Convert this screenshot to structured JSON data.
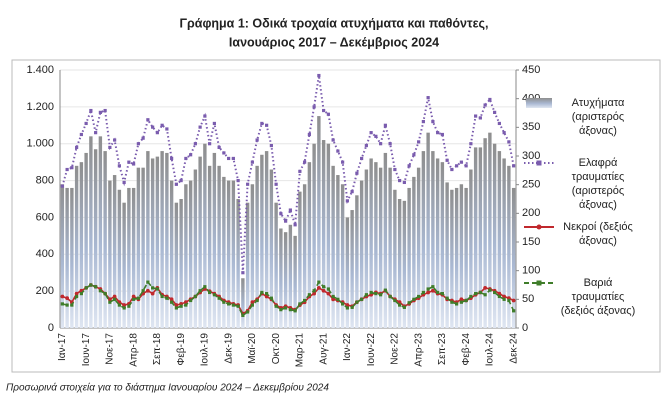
{
  "chart_data": {
    "type": "combo",
    "title": "Γράφημα 1: Οδικά τροχαία ατυχήματα και παθόντες,",
    "subtitle": "Ιανουάριος 2017 – Δεκέμβριος 2024",
    "footnote": "Προσωρινά στοιχεία για το διάστημα Ιανουαρίου 2024 – Δεκεμβρίου 2024",
    "categories": [
      "Ιαν-17",
      null,
      null,
      null,
      null,
      "Ιουν-17",
      null,
      null,
      null,
      null,
      "Νοε-17",
      null,
      null,
      null,
      null,
      "Απρ-18",
      null,
      null,
      null,
      null,
      "Σεπ-18",
      null,
      null,
      null,
      null,
      "Φεβ-19",
      null,
      null,
      null,
      null,
      "Ιουλ-19",
      null,
      null,
      null,
      null,
      "Δεκ-19",
      null,
      null,
      null,
      null,
      "Μαϊ-20",
      null,
      null,
      null,
      null,
      "Οκτ-20",
      null,
      null,
      null,
      null,
      "Μαρ-21",
      null,
      null,
      null,
      null,
      "Αυγ-21",
      null,
      null,
      null,
      null,
      "Ιαν-22",
      null,
      null,
      null,
      null,
      "Ιουν-22",
      null,
      null,
      null,
      null,
      "Νοε-22",
      null,
      null,
      null,
      null,
      "Απρ-23",
      null,
      null,
      null,
      null,
      "Σεπ-23",
      null,
      null,
      null,
      null,
      "Φεβ-24",
      null,
      null,
      null,
      null,
      "Ιουλ-24",
      null,
      null,
      null,
      null,
      "Δεκ-24"
    ],
    "series": [
      {
        "name": "Ατυχήματα (αριστερός άξονας)",
        "type": "bar",
        "axis": "y",
        "color": "#a9b8d2",
        "values": [
          780,
          760,
          760,
          880,
          900,
          950,
          1040,
          970,
          1040,
          960,
          800,
          830,
          750,
          680,
          760,
          760,
          870,
          870,
          960,
          920,
          930,
          960,
          950,
          800,
          680,
          700,
          780,
          800,
          860,
          930,
          1000,
          880,
          950,
          880,
          820,
          800,
          800,
          700,
          270,
          680,
          780,
          880,
          940,
          960,
          860,
          680,
          540,
          520,
          560,
          500,
          740,
          780,
          900,
          1000,
          1150,
          1020,
          1000,
          880,
          830,
          780,
          600,
          640,
          720,
          800,
          860,
          920,
          900,
          870,
          950,
          870,
          750,
          700,
          690,
          760,
          820,
          870,
          960,
          1060,
          960,
          920,
          900,
          790,
          750,
          760,
          780,
          760,
          860,
          980,
          980,
          1030,
          1060,
          1000,
          960,
          920,
          880,
          760
        ]
      },
      {
        "name": "Ελαφρά τραυματίες (αριστερός άξονας)",
        "type": "line",
        "axis": "y",
        "color": "#7a5cae",
        "style": "dotted",
        "marker": "square",
        "values": [
          770,
          860,
          870,
          980,
          1050,
          1110,
          1180,
          1060,
          1170,
          1180,
          980,
          1020,
          880,
          790,
          900,
          890,
          1000,
          1030,
          1130,
          1090,
          1060,
          1100,
          1080,
          920,
          780,
          800,
          920,
          940,
          1000,
          1090,
          1150,
          1000,
          1110,
          980,
          950,
          920,
          920,
          800,
          300,
          780,
          900,
          1020,
          1110,
          1100,
          990,
          780,
          620,
          580,
          640,
          560,
          850,
          900,
          1050,
          1200,
          1370,
          1180,
          1160,
          1020,
          960,
          900,
          690,
          740,
          840,
          920,
          990,
          1060,
          1040,
          1000,
          1100,
          1000,
          860,
          800,
          790,
          880,
          940,
          1010,
          1120,
          1250,
          1120,
          1060,
          1050,
          910,
          860,
          880,
          900,
          880,
          1000,
          1150,
          1140,
          1210,
          1240,
          1170,
          1110,
          1060,
          1010,
          880
        ]
      },
      {
        "name": "Νεκροί (δεξιός άξονας)",
        "type": "line",
        "axis": "y2",
        "color": "#c0282d",
        "style": "solid",
        "marker": "circle",
        "values": [
          55,
          52,
          45,
          60,
          65,
          70,
          75,
          72,
          68,
          60,
          50,
          55,
          45,
          40,
          42,
          55,
          50,
          60,
          65,
          60,
          70,
          58,
          55,
          50,
          40,
          42,
          45,
          50,
          55,
          62,
          68,
          64,
          60,
          55,
          48,
          45,
          42,
          40,
          25,
          30,
          45,
          50,
          60,
          55,
          50,
          40,
          35,
          38,
          35,
          32,
          40,
          45,
          55,
          60,
          70,
          65,
          60,
          50,
          48,
          45,
          40,
          38,
          45,
          50,
          55,
          58,
          62,
          60,
          65,
          55,
          50,
          45,
          38,
          42,
          48,
          52,
          58,
          62,
          65,
          60,
          58,
          50,
          48,
          45,
          50,
          48,
          52,
          58,
          62,
          70,
          68,
          65,
          60,
          55,
          52,
          48
        ]
      },
      {
        "name": "Βαριά τραυματίες (δεξιός άξονας)",
        "type": "line",
        "axis": "y2",
        "color": "#3f7d2a",
        "style": "dashed",
        "marker": "square",
        "values": [
          42,
          40,
          40,
          55,
          60,
          70,
          75,
          72,
          65,
          60,
          45,
          50,
          40,
          35,
          38,
          50,
          52,
          65,
          80,
          70,
          68,
          55,
          52,
          45,
          35,
          38,
          40,
          48,
          55,
          65,
          72,
          62,
          58,
          52,
          45,
          42,
          40,
          38,
          22,
          28,
          40,
          48,
          62,
          60,
          52,
          38,
          32,
          35,
          32,
          30,
          42,
          48,
          58,
          65,
          80,
          72,
          68,
          55,
          50,
          42,
          35,
          36,
          45,
          50,
          58,
          62,
          60,
          58,
          66,
          55,
          48,
          40,
          36,
          44,
          50,
          55,
          62,
          68,
          72,
          62,
          60,
          52,
          45,
          42,
          45,
          48,
          55,
          60,
          62,
          58,
          66,
          62,
          55,
          50,
          48,
          30
        ]
      }
    ],
    "ylim": [
      0,
      1400
    ],
    "yticks": [
      0,
      200,
      400,
      600,
      800,
      {
        "value": 1000,
        "label": "1.000"
      },
      {
        "value": 1200,
        "label": "1.200"
      },
      {
        "value": 1400,
        "label": "1.400"
      }
    ],
    "y2lim": [
      0,
      450
    ],
    "y2ticks": [
      0,
      50,
      100,
      150,
      200,
      250,
      300,
      350,
      400,
      450
    ],
    "grid": true,
    "legend": "right"
  }
}
